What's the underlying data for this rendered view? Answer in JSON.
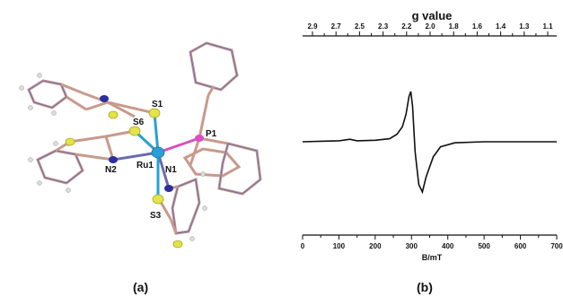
{
  "panels": {
    "a_label": "(a)",
    "b_label": "(b)"
  },
  "structure": {
    "atom_labels": [
      "S1",
      "S6",
      "P1",
      "N2",
      "Ru1",
      "N1",
      "S3"
    ],
    "colors": {
      "ruthenium": "#2a9fd6",
      "sulfur": "#e3e34a",
      "nitrogen": "#2b2f9c",
      "phosphorus": "#d94fc0",
      "bond_outer": "#c89a8c",
      "bond_inner": "#6a6ab0"
    }
  },
  "chart_data": {
    "type": "line",
    "title": "",
    "xlabel": "B/mT",
    "x_ticks": [
      "0",
      "100",
      "200",
      "300",
      "400",
      "500",
      "600",
      "700"
    ],
    "xlim": [
      0,
      700
    ],
    "top_axis_label": "g value",
    "top_ticks": [
      "2.9",
      "2.7",
      "2.5",
      "2.3",
      "2.2",
      "2.0",
      "1.8",
      "1.6",
      "1.4",
      "1.3",
      "1.1"
    ],
    "ylabel": "",
    "grid": false,
    "series": [
      {
        "x": [
          0,
          50,
          100,
          130,
          150,
          200,
          240,
          260,
          275,
          285,
          293,
          298,
          303,
          310,
          320,
          330,
          340,
          360,
          380,
          420,
          500,
          600,
          700
        ],
        "y": [
          0,
          0.01,
          0.02,
          0.05,
          0.02,
          0.03,
          0.06,
          0.15,
          0.3,
          0.55,
          0.9,
          1.0,
          0.7,
          -0.2,
          -0.85,
          -1.0,
          -0.7,
          -0.3,
          -0.1,
          -0.02,
          0,
          0,
          0
        ]
      }
    ],
    "line_color": "#111111"
  }
}
